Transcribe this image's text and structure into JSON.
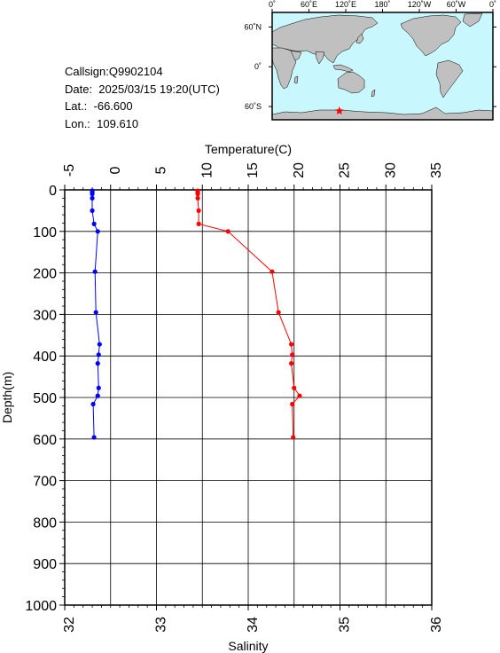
{
  "info": {
    "callsign": "Callsign:Q9902104",
    "date": "Date:  2025/03/15 19:20(UTC)",
    "lat": "Lat.:  -66.600",
    "lon": "Lon.:  109.610"
  },
  "map": {
    "lon_tick_labels": [
      "0˚",
      "60˚E",
      "120˚E",
      "180˚",
      "120˚W",
      "60˚W",
      "0˚"
    ],
    "lat_tick_labels": [
      "60˚N",
      "0˚",
      "60˚S"
    ],
    "marker_lat": -66.6,
    "marker_lon": 109.61,
    "marker_symbol": "star",
    "ocean_color": "#c8f7fd",
    "land_color": "#c0c0c0",
    "marker_color": "#ff0000"
  },
  "chart_data": {
    "type": "line",
    "title": "",
    "ylabel": "Depth(m)",
    "ylim": [
      0,
      1000
    ],
    "y_inverted": true,
    "y_ticks": [
      "0",
      "100",
      "200",
      "300",
      "400",
      "500",
      "600",
      "700",
      "800",
      "900",
      "1000"
    ],
    "grid": true,
    "temperature_axis": {
      "label": "Temperature(C)",
      "position": "top",
      "range": [
        -5,
        35
      ],
      "ticks": [
        "-5",
        "0",
        "5",
        "10",
        "15",
        "20",
        "25",
        "30",
        "35"
      ]
    },
    "salinity_axis": {
      "label": "Salinity",
      "position": "bottom",
      "range": [
        32,
        36
      ],
      "ticks": [
        "32",
        "33",
        "34",
        "35",
        "36"
      ]
    },
    "series": [
      {
        "axis": "temperature",
        "color": "#ff0000",
        "points": [
          {
            "depth": 2,
            "value": 9.5
          },
          {
            "depth": 6,
            "value": 9.5
          },
          {
            "depth": 10,
            "value": 9.5
          },
          {
            "depth": 20,
            "value": 9.5
          },
          {
            "depth": 50,
            "value": 9.6
          },
          {
            "depth": 82,
            "value": 9.6
          },
          {
            "depth": 100,
            "value": 12.8
          },
          {
            "depth": 197,
            "value": 17.6
          },
          {
            "depth": 295,
            "value": 18.3
          },
          {
            "depth": 372,
            "value": 19.7
          },
          {
            "depth": 397,
            "value": 19.8
          },
          {
            "depth": 418,
            "value": 19.7
          },
          {
            "depth": 477,
            "value": 20.0
          },
          {
            "depth": 496,
            "value": 20.6
          },
          {
            "depth": 516,
            "value": 19.8
          },
          {
            "depth": 596,
            "value": 19.9
          }
        ]
      },
      {
        "axis": "salinity",
        "color": "#0000ff",
        "points": [
          {
            "depth": 2,
            "value": 32.3
          },
          {
            "depth": 6,
            "value": 32.3
          },
          {
            "depth": 10,
            "value": 32.3
          },
          {
            "depth": 20,
            "value": 32.3
          },
          {
            "depth": 50,
            "value": 32.3
          },
          {
            "depth": 82,
            "value": 32.32
          },
          {
            "depth": 100,
            "value": 32.36
          },
          {
            "depth": 197,
            "value": 32.33
          },
          {
            "depth": 295,
            "value": 32.34
          },
          {
            "depth": 372,
            "value": 32.38
          },
          {
            "depth": 397,
            "value": 32.37
          },
          {
            "depth": 418,
            "value": 32.36
          },
          {
            "depth": 477,
            "value": 32.37
          },
          {
            "depth": 496,
            "value": 32.36
          },
          {
            "depth": 516,
            "value": 32.31
          },
          {
            "depth": 596,
            "value": 32.32
          }
        ]
      }
    ]
  }
}
